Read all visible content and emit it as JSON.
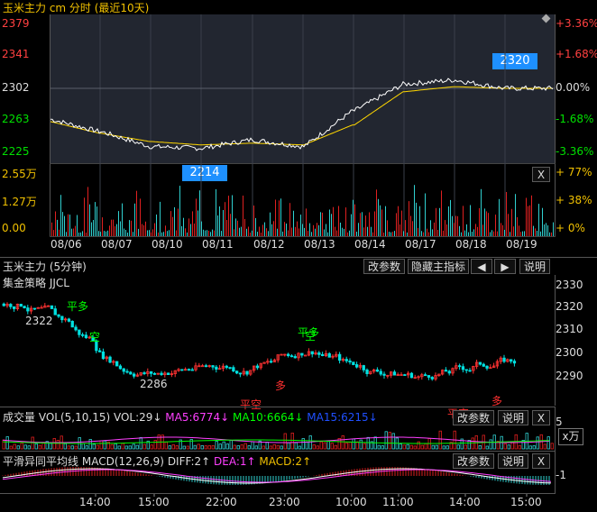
{
  "colors": {
    "up": "#ff3232",
    "down": "#00e0e0",
    "flat": "#dddddd",
    "ma": "#f0c000",
    "price": "#ffffff",
    "avg": "#ffd700",
    "signal_green": "#00ff00",
    "signal_red": "#ff3030",
    "callout": "#1e90ff"
  },
  "top_chart": {
    "title": "玉米主力 cm 分时 (最近10天)",
    "price_ticks": [
      {
        "label": "2379",
        "value": 2379,
        "color": "#ff4040"
      },
      {
        "label": "2341",
        "value": 2341,
        "color": "#ff4040"
      },
      {
        "label": "2302",
        "value": 2302,
        "color": "#dddddd"
      },
      {
        "label": "2263",
        "value": 2263,
        "color": "#00e000"
      },
      {
        "label": "2225",
        "value": 2225,
        "color": "#00e000"
      }
    ],
    "pct_ticks": [
      {
        "label": "+3.36%",
        "color": "#ff4040"
      },
      {
        "label": "+1.68%",
        "color": "#ff4040"
      },
      {
        "label": "0.00%",
        "color": "#dddddd"
      },
      {
        "label": "-1.68%",
        "color": "#00e000"
      },
      {
        "label": "-3.36%",
        "color": "#00e000"
      }
    ],
    "vol_ticks": [
      {
        "label": "2.55万",
        "color": "#f0c000"
      },
      {
        "label": "1.27万",
        "color": "#f0c000"
      },
      {
        "label": "0.00",
        "color": "#f0c000"
      }
    ],
    "vol_pct_ticks": [
      {
        "label": "+ 77%",
        "color": "#f0c000"
      },
      {
        "label": "+ 38%",
        "color": "#f0c000"
      },
      {
        "label": "+ 0%",
        "color": "#f0c000"
      }
    ],
    "dates": [
      "08/06",
      "08/07",
      "08/10",
      "08/11",
      "08/12",
      "08/13",
      "08/14",
      "08/17",
      "08/18",
      "08/19"
    ],
    "callout_high": "2320",
    "callout_low": "2214",
    "close_button": "X"
  },
  "chart_data": {
    "type": "line",
    "title": "玉米主力 cm 分时 (最近10天)",
    "x": [
      "08/06",
      "08/07",
      "08/10",
      "08/11",
      "08/12",
      "08/13",
      "08/14",
      "08/17",
      "08/18",
      "08/19"
    ],
    "series": [
      {
        "values": [
          2265,
          2250,
          2232,
          2230,
          2240,
          2232,
          2275,
          2307,
          2312,
          2302
        ]
      },
      {
        "values": [
          2262,
          2248,
          2238,
          2234,
          2236,
          2234,
          2258,
          2298,
          2304,
          2302
        ]
      }
    ],
    "ylim": [
      2225,
      2379
    ],
    "annotations": [
      "2320",
      "2214"
    ]
  },
  "k_panel": {
    "title": "玉米主力 (5分钟)",
    "strategy": "集金策略 JJCL",
    "buttons": {
      "params": "改参数",
      "hide": "隐藏主指标",
      "left": "◀",
      "right": "▶",
      "help": "说明"
    },
    "price_ticks": [
      "2330",
      "2320",
      "2310",
      "2300",
      "2290"
    ],
    "signals": [
      {
        "text": "平多",
        "color": "#00ff00"
      },
      {
        "text": "空",
        "color": "#00ff00"
      },
      {
        "text": "平多",
        "color": "#00ff00"
      },
      {
        "text": "空",
        "color": "#00ff00"
      },
      {
        "text": "平空",
        "color": "#ff3030"
      },
      {
        "text": "多",
        "color": "#ff3030"
      },
      {
        "text": "平空",
        "color": "#ff3030"
      },
      {
        "text": "多",
        "color": "#ff3030"
      }
    ],
    "label_high": "2322",
    "label_low": "2286"
  },
  "vol_panel": {
    "name": "成交量",
    "params": "VOL(5,10,15)",
    "vol": "VOL:29↓",
    "ma5": "MA5:6774↓",
    "ma10": "MA10:6664↓",
    "ma15": "MA15:6215↓",
    "buttons": {
      "params": "改参数",
      "help": "说明",
      "close": "X"
    },
    "tick_5": "5",
    "unit": "x万"
  },
  "macd_panel": {
    "name": "平滑异同平均线",
    "params": "MACD(12,26,9)",
    "diff": "DIFF:2↑",
    "dea": "DEA:1↑",
    "macd": "MACD:2↑",
    "buttons": {
      "params": "改参数",
      "help": "说明",
      "close": "X"
    },
    "tick": "-1"
  },
  "time_axis": [
    "14:00",
    "15:00",
    "22:00",
    "23:00",
    "10:00",
    "11:00",
    "14:00",
    "15:00"
  ]
}
